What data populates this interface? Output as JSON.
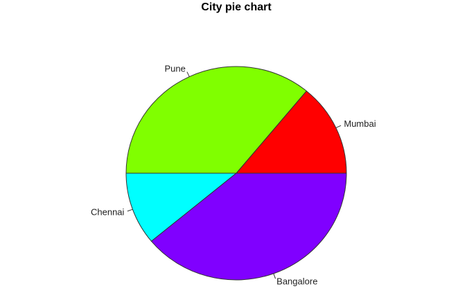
{
  "chart_data": {
    "type": "pie",
    "title": "City pie chart",
    "start_angle_deg": 0,
    "direction": "counterclockwise",
    "slices": [
      {
        "label": "Mumbai",
        "value": 14,
        "color": "#ff0000"
      },
      {
        "label": "Pune",
        "value": 36,
        "color": "#80ff00"
      },
      {
        "label": "Chennai",
        "value": 11,
        "color": "#00ffff"
      },
      {
        "label": "Bangalore",
        "value": 39,
        "color": "#8000ff"
      }
    ]
  }
}
